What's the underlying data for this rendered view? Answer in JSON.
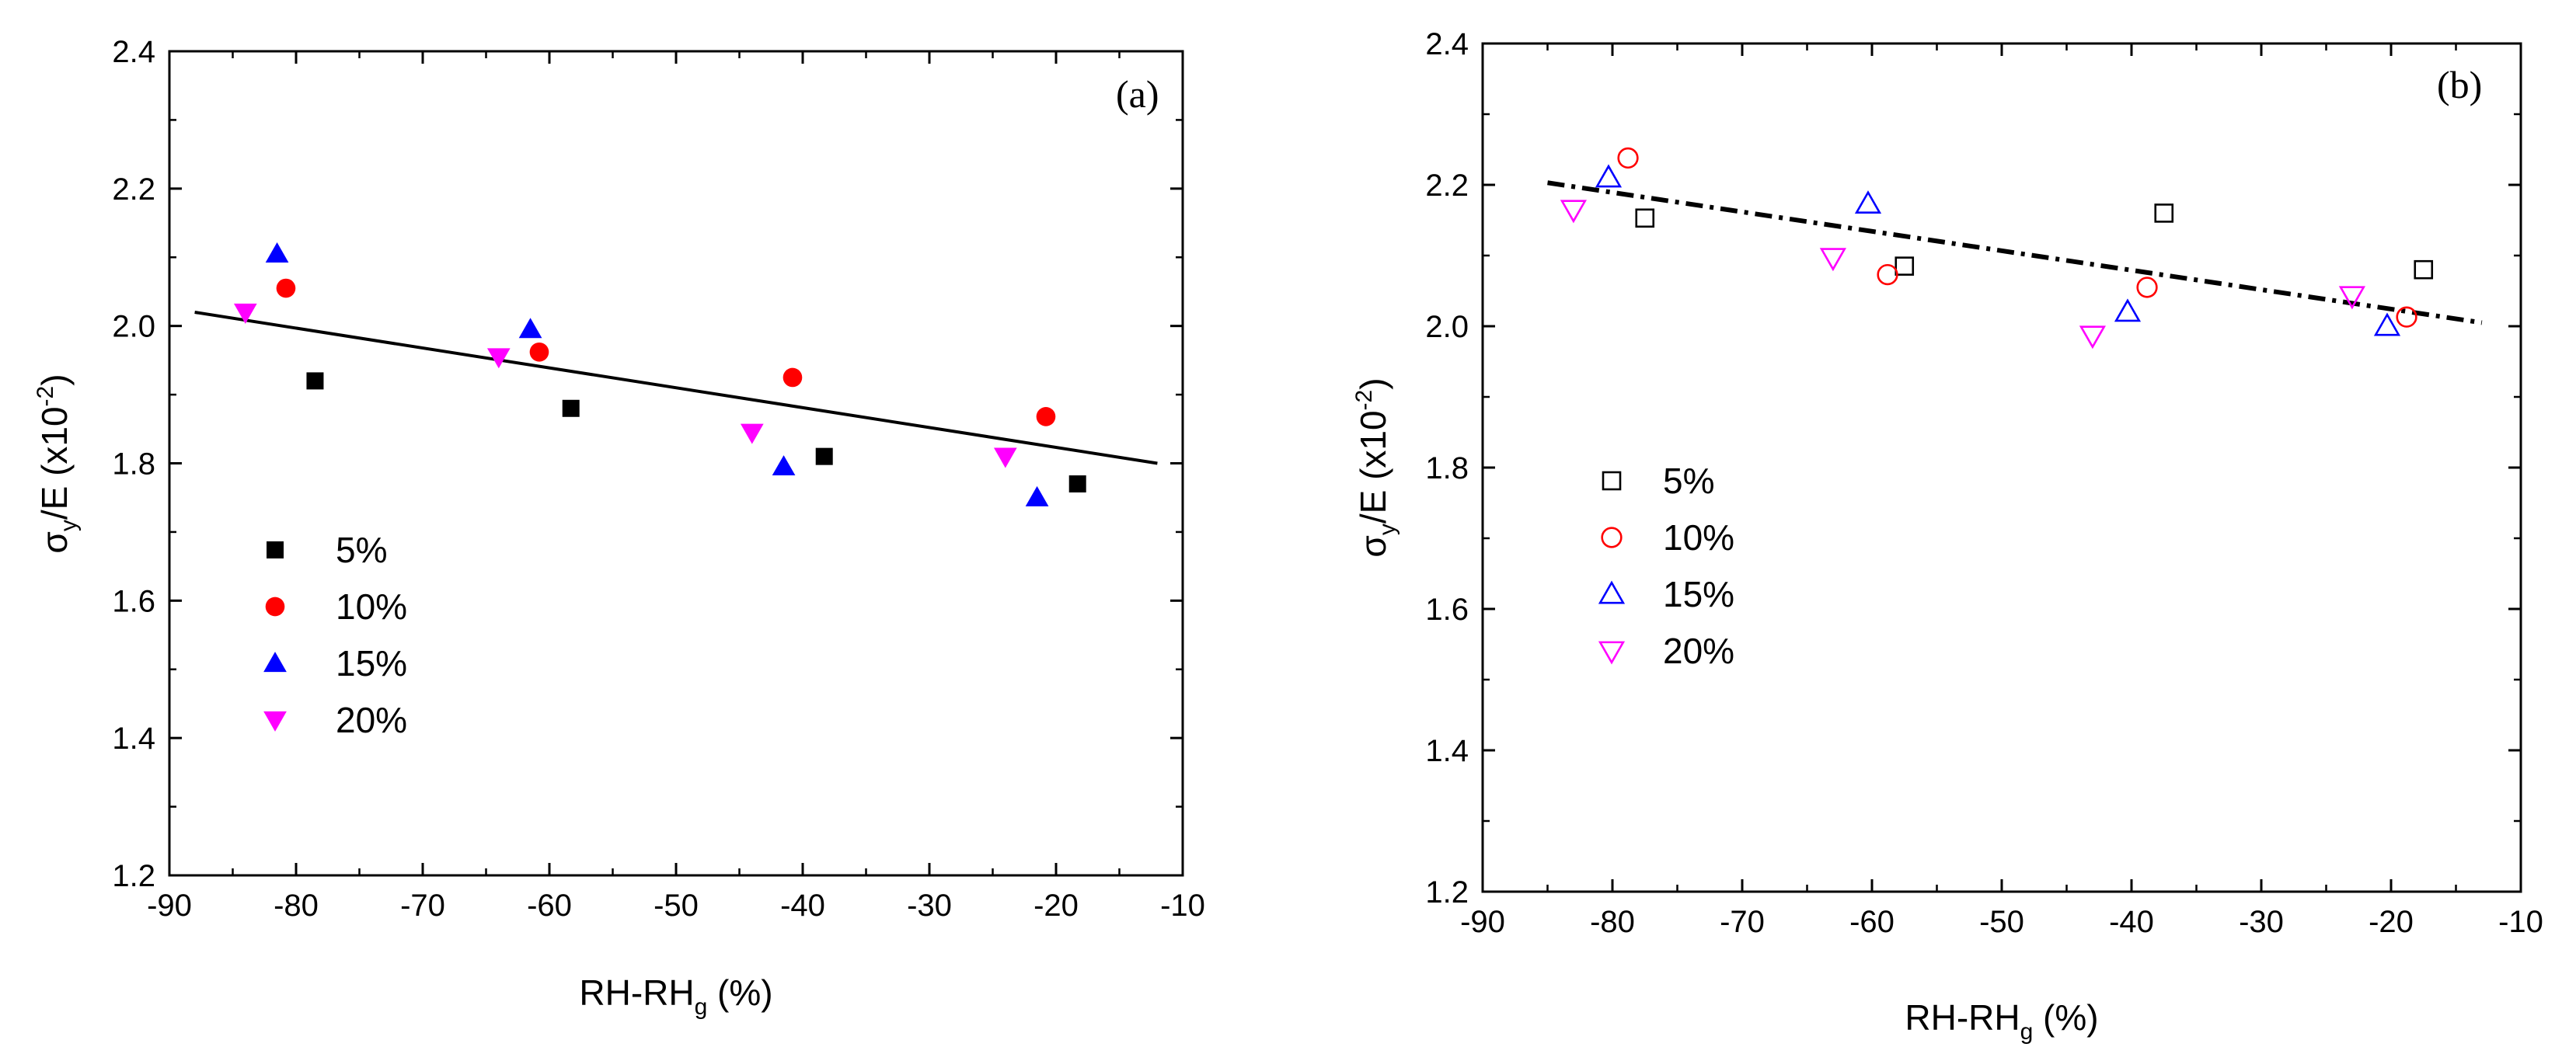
{
  "chart_data": [
    {
      "type": "scatter",
      "panel_label": "(a)",
      "xlabel": {
        "main": "RH-RH",
        "sub": "g",
        "unit": " (%)"
      },
      "ylabel": {
        "sigma": "σ",
        "sub": "y",
        "mid": "/E  (x10",
        "exp": "-2",
        "close": ")"
      },
      "xlim": [
        -90,
        -10
      ],
      "ylim": [
        1.2,
        2.4
      ],
      "xticks": [
        "-90",
        "-80",
        "-70",
        "-60",
        "-50",
        "-40",
        "-30",
        "-20",
        "-10"
      ],
      "yticks": [
        "1.2",
        "1.4",
        "1.6",
        "1.8",
        "2.0",
        "2.2",
        "2.4"
      ],
      "marker_fill": "filled",
      "legend_position": "lower-left",
      "series": [
        {
          "name": "5%",
          "marker": "square",
          "color": "#000000",
          "points": [
            [
              -78.5,
              1.92
            ],
            [
              -58.3,
              1.88
            ],
            [
              -38.3,
              1.81
            ],
            [
              -18.3,
              1.77
            ]
          ]
        },
        {
          "name": "10%",
          "marker": "circle",
          "color": "#ff0000",
          "points": [
            [
              -80.8,
              2.055
            ],
            [
              -60.8,
              1.962
            ],
            [
              -40.8,
              1.925
            ],
            [
              -20.8,
              1.868
            ]
          ]
        },
        {
          "name": "15%",
          "marker": "triangle-up",
          "color": "#0000ff",
          "points": [
            [
              -81.5,
              2.105
            ],
            [
              -61.5,
              1.995
            ],
            [
              -41.5,
              1.795
            ],
            [
              -21.5,
              1.75
            ]
          ]
        },
        {
          "name": "20%",
          "marker": "triangle-down",
          "color": "#ff00ff",
          "points": [
            [
              -84.0,
              2.02
            ],
            [
              -64.0,
              1.955
            ],
            [
              -44.0,
              1.845
            ],
            [
              -24.0,
              1.81
            ]
          ]
        }
      ],
      "fit_line": {
        "style": "solid",
        "points": [
          [
            -88,
            2.02
          ],
          [
            -12,
            1.8
          ]
        ]
      }
    },
    {
      "type": "scatter",
      "panel_label": "(b)",
      "xlabel": {
        "main": "RH-RH",
        "sub": "g",
        "unit": "  (%)"
      },
      "ylabel": {
        "sigma": "σ",
        "sub": "y",
        "mid": "/E  (x10",
        "exp": "-2",
        "close": ")"
      },
      "xlim": [
        -90,
        -10
      ],
      "ylim": [
        1.2,
        2.4
      ],
      "xticks": [
        "-90",
        "-80",
        "-70",
        "-60",
        "-50",
        "-40",
        "-30",
        "-20",
        "-10"
      ],
      "yticks": [
        "1.2",
        "1.4",
        "1.6",
        "1.8",
        "2.0",
        "2.2",
        "2.4"
      ],
      "marker_fill": "open",
      "legend_position": "center-left",
      "series": [
        {
          "name": "5%",
          "marker": "square",
          "color": "#000000",
          "points": [
            [
              -77.5,
              2.153
            ],
            [
              -57.5,
              2.085
            ],
            [
              -37.5,
              2.16
            ],
            [
              -17.5,
              2.08
            ]
          ]
        },
        {
          "name": "10%",
          "marker": "circle",
          "color": "#ff0000",
          "points": [
            [
              -78.8,
              2.238
            ],
            [
              -58.8,
              2.073
            ],
            [
              -38.8,
              2.055
            ],
            [
              -18.8,
              2.013
            ]
          ]
        },
        {
          "name": "15%",
          "marker": "triangle-up",
          "color": "#0000ff",
          "points": [
            [
              -80.3,
              2.21
            ],
            [
              -60.3,
              2.173
            ],
            [
              -40.3,
              2.02
            ],
            [
              -20.3,
              2.0
            ]
          ]
        },
        {
          "name": "20%",
          "marker": "triangle-down",
          "color": "#ff00ff",
          "points": [
            [
              -83.0,
              2.165
            ],
            [
              -63.0,
              2.097
            ],
            [
              -43.0,
              1.987
            ],
            [
              -23.0,
              2.043
            ]
          ]
        }
      ],
      "fit_line": {
        "style": "dash-dot",
        "points": [
          [
            -85,
            2.203
          ],
          [
            -13,
            2.005
          ]
        ]
      }
    }
  ]
}
